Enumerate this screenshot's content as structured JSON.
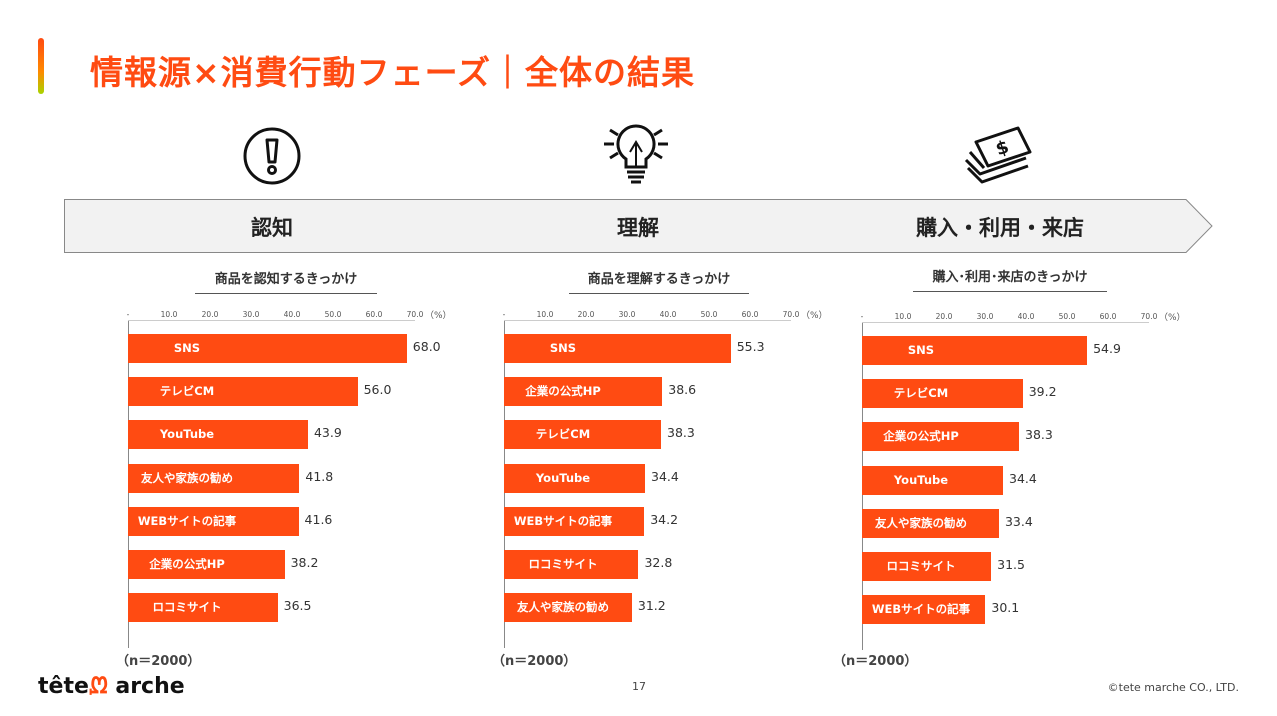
{
  "header": {
    "title": "情報源×消費行動フェーズ｜全体の結果",
    "accent_color": "#ff4b12"
  },
  "phases": [
    {
      "label": "認知",
      "icon": "exclamation-circle-icon"
    },
    {
      "label": "理解",
      "icon": "lightbulb-icon"
    },
    {
      "label": "購入・利用・来店",
      "icon": "money-bills-icon"
    }
  ],
  "chart_data": [
    {
      "type": "bar",
      "orientation": "horizontal",
      "title": "商品を認知するきっかけ",
      "unit": "（%）",
      "xlim": [
        0,
        70
      ],
      "ticks": [
        "-",
        "10.0",
        "20.0",
        "30.0",
        "40.0",
        "50.0",
        "60.0",
        "70.0"
      ],
      "categories": [
        "SNS",
        "テレビCM",
        "YouTube",
        "友人や家族の勧め",
        "WEBサイトの記事",
        "企業の公式HP",
        "ロコミサイト"
      ],
      "values": [
        68.0,
        56.0,
        43.9,
        41.8,
        41.6,
        38.2,
        36.5
      ],
      "labels": [
        "68.0",
        "56.0",
        "43.9",
        "41.8",
        "41.6",
        "38.2",
        "36.5"
      ],
      "bar_color": "#ff4b12",
      "note": "（n＝2000）"
    },
    {
      "type": "bar",
      "orientation": "horizontal",
      "title": "商品を理解するきっかけ",
      "unit": "（%）",
      "xlim": [
        0,
        70
      ],
      "ticks": [
        "-",
        "10.0",
        "20.0",
        "30.0",
        "40.0",
        "50.0",
        "60.0",
        "70.0"
      ],
      "categories": [
        "SNS",
        "企業の公式HP",
        "テレビCM",
        "YouTube",
        "WEBサイトの記事",
        "ロコミサイト",
        "友人や家族の勧め"
      ],
      "values": [
        55.3,
        38.6,
        38.3,
        34.4,
        34.2,
        32.8,
        31.2
      ],
      "labels": [
        "55.3",
        "38.6",
        "38.3",
        "34.4",
        "34.2",
        "32.8",
        "31.2"
      ],
      "bar_color": "#ff4b12",
      "note": "（n＝2000）"
    },
    {
      "type": "bar",
      "orientation": "horizontal",
      "title": "購入･利用･来店のきっかけ",
      "unit": "（%）",
      "xlim": [
        0,
        70
      ],
      "ticks": [
        "-",
        "10.0",
        "20.0",
        "30.0",
        "40.0",
        "50.0",
        "60.0",
        "70.0"
      ],
      "categories": [
        "SNS",
        "テレビCM",
        "企業の公式HP",
        "YouTube",
        "友人や家族の勧め",
        "ロコミサイト",
        "WEBサイトの記事"
      ],
      "values": [
        54.9,
        39.2,
        38.3,
        34.4,
        33.4,
        31.5,
        30.1
      ],
      "labels": [
        "54.9",
        "39.2",
        "38.3",
        "34.4",
        "33.4",
        "31.5",
        "30.1"
      ],
      "bar_color": "#ff4b12",
      "note": "（n＝2000）"
    }
  ],
  "footer": {
    "logo_text": "tête",
    "logo_text2": "arche",
    "page_number": "17",
    "copyright": "©tete marche CO., LTD."
  }
}
